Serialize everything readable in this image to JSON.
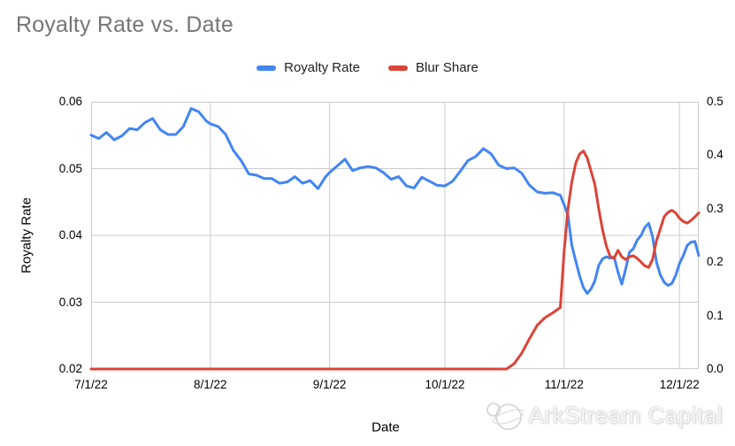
{
  "title": "Royalty Rate vs. Date",
  "legend": [
    {
      "label": "Royalty Rate",
      "color": "#4285f4"
    },
    {
      "label": "Blur Share",
      "color": "#db4437"
    }
  ],
  "watermark": {
    "text": "ArkStream Capital",
    "logo_icon": "arkstream-planet-logo"
  },
  "chart_data": {
    "type": "line",
    "title": "Royalty Rate vs. Date",
    "xlabel": "Date",
    "ylabel_left": "Royalty Rate",
    "grid": true,
    "grid_color": "#cccccc",
    "title_color": "#757575",
    "legend_position": "top-center",
    "left_axis": {
      "ticks": [
        "0.06",
        "0.05",
        "0.04",
        "0.03",
        "0.02"
      ],
      "range": [
        0.02,
        0.06
      ]
    },
    "right_axis": {
      "ticks": [
        "0.5",
        "0.4",
        "0.3",
        "0.2",
        "0.1",
        "0.0"
      ],
      "range": [
        0.0,
        0.5
      ]
    },
    "x_ticks": [
      "7/1/22",
      "8/1/22",
      "9/1/22",
      "10/1/22",
      "11/1/22",
      "12/1/22"
    ],
    "x": [
      "7/1/22",
      "7/3/22",
      "7/5/22",
      "7/7/22",
      "7/9/22",
      "7/11/22",
      "7/13/22",
      "7/15/22",
      "7/17/22",
      "7/19/22",
      "7/21/22",
      "7/23/22",
      "7/25/22",
      "7/27/22",
      "7/29/22",
      "7/31/22",
      "8/1/22",
      "8/3/22",
      "8/5/22",
      "8/7/22",
      "8/9/22",
      "8/11/22",
      "8/13/22",
      "8/15/22",
      "8/17/22",
      "8/19/22",
      "8/21/22",
      "8/23/22",
      "8/25/22",
      "8/27/22",
      "8/29/22",
      "8/31/22",
      "9/1/22",
      "9/3/22",
      "9/5/22",
      "9/7/22",
      "9/9/22",
      "9/11/22",
      "9/13/22",
      "9/15/22",
      "9/17/22",
      "9/19/22",
      "9/21/22",
      "9/23/22",
      "9/25/22",
      "9/27/22",
      "9/29/22",
      "10/1/22",
      "10/3/22",
      "10/5/22",
      "10/7/22",
      "10/9/22",
      "10/11/22",
      "10/13/22",
      "10/15/22",
      "10/17/22",
      "10/19/22",
      "10/21/22",
      "10/23/22",
      "10/25/22",
      "10/27/22",
      "10/29/22",
      "10/31/22",
      "11/1/22",
      "11/2/22",
      "11/3/22",
      "11/4/22",
      "11/5/22",
      "11/6/22",
      "11/7/22",
      "11/8/22",
      "11/9/22",
      "11/10/22",
      "11/11/22",
      "11/12/22",
      "11/13/22",
      "11/14/22",
      "11/15/22",
      "11/16/22",
      "11/17/22",
      "11/18/22",
      "11/19/22",
      "11/20/22",
      "11/21/22",
      "11/22/22",
      "11/23/22",
      "11/24/22",
      "11/25/22",
      "11/26/22",
      "11/27/22",
      "11/28/22",
      "11/29/22",
      "11/30/22",
      "12/1/22",
      "12/2/22",
      "12/3/22",
      "12/4/22",
      "12/5/22",
      "12/6/22"
    ],
    "series": [
      {
        "name": "Royalty Rate",
        "axis": "left",
        "color": "#4285f4",
        "values": [
          0.055,
          0.0545,
          0.0554,
          0.0543,
          0.0549,
          0.056,
          0.0558,
          0.0569,
          0.0575,
          0.0558,
          0.0551,
          0.0551,
          0.0563,
          0.059,
          0.0585,
          0.0571,
          0.0567,
          0.0563,
          0.0551,
          0.0527,
          0.0512,
          0.0492,
          0.049,
          0.0485,
          0.0485,
          0.0478,
          0.048,
          0.0488,
          0.0478,
          0.0482,
          0.047,
          0.0488,
          0.0494,
          0.0504,
          0.0514,
          0.0497,
          0.0501,
          0.0503,
          0.0501,
          0.0494,
          0.0484,
          0.0488,
          0.0474,
          0.0471,
          0.0487,
          0.0481,
          0.0475,
          0.0474,
          0.0481,
          0.0496,
          0.0512,
          0.0518,
          0.053,
          0.0522,
          0.0505,
          0.05,
          0.0501,
          0.0493,
          0.0475,
          0.0465,
          0.0463,
          0.0464,
          0.046,
          0.0446,
          0.043,
          0.0385,
          0.0362,
          0.034,
          0.0322,
          0.0313,
          0.032,
          0.0332,
          0.0355,
          0.0365,
          0.0368,
          0.0366,
          0.0368,
          0.0345,
          0.0327,
          0.035,
          0.0375,
          0.038,
          0.0393,
          0.04,
          0.0412,
          0.0418,
          0.0398,
          0.036,
          0.0341,
          0.033,
          0.0325,
          0.0328,
          0.034,
          0.0358,
          0.037,
          0.0385,
          0.039,
          0.0391,
          0.037
        ]
      },
      {
        "name": "Blur Share",
        "axis": "right",
        "color": "#db4437",
        "values": [
          0,
          0,
          0,
          0,
          0,
          0,
          0,
          0,
          0,
          0,
          0,
          0,
          0,
          0,
          0,
          0,
          0,
          0,
          0,
          0,
          0,
          0,
          0,
          0,
          0,
          0,
          0,
          0,
          0,
          0,
          0,
          0,
          0,
          0,
          0,
          0,
          0,
          0,
          0,
          0,
          0,
          0,
          0,
          0,
          0,
          0,
          0,
          0,
          0,
          0,
          0,
          0,
          0,
          0,
          0,
          0,
          0.01,
          0.03,
          0.057,
          0.082,
          0.096,
          0.105,
          0.115,
          0.22,
          0.3,
          0.35,
          0.385,
          0.402,
          0.408,
          0.395,
          0.37,
          0.345,
          0.3,
          0.26,
          0.23,
          0.21,
          0.207,
          0.222,
          0.21,
          0.205,
          0.21,
          0.212,
          0.207,
          0.2,
          0.193,
          0.19,
          0.205,
          0.24,
          0.262,
          0.285,
          0.293,
          0.297,
          0.292,
          0.282,
          0.276,
          0.273,
          0.278,
          0.285,
          0.292
        ]
      }
    ]
  }
}
